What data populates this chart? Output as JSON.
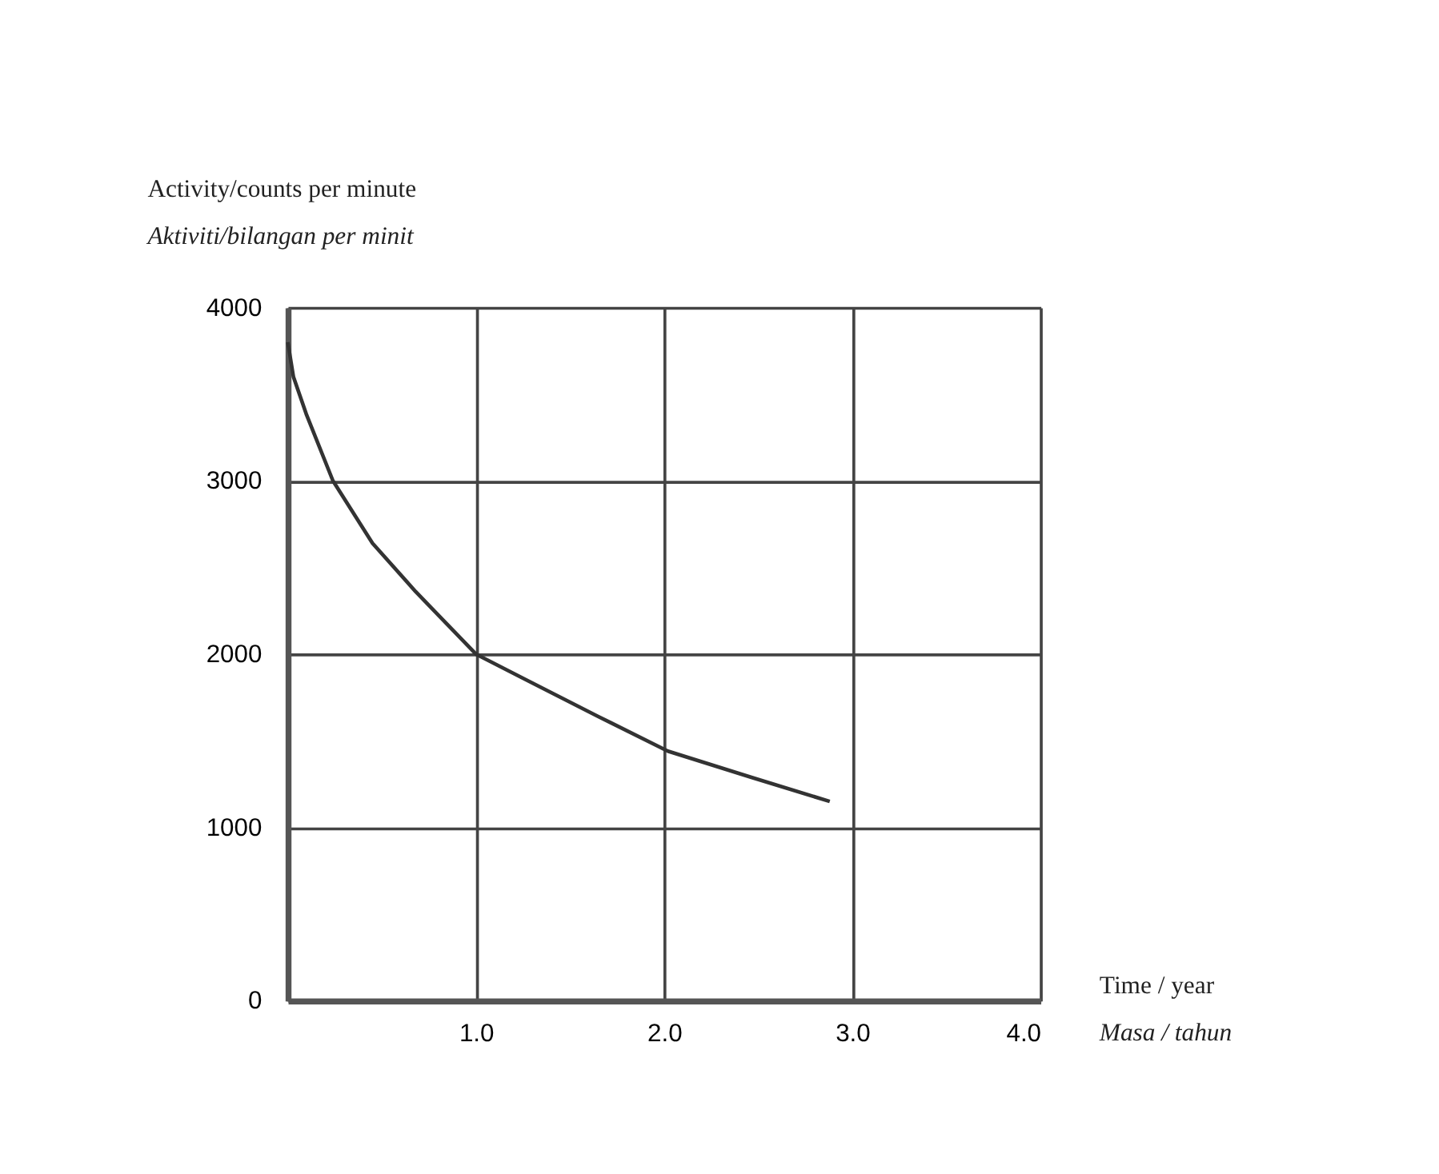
{
  "chart_data": {
    "type": "line",
    "xlabel": "Time / year\nMasa / tahun",
    "ylabel": "Activity/counts per minute\nAktiviti/bilangan per minit",
    "x": [
      0,
      0.03,
      0.1,
      0.24,
      0.45,
      0.68,
      1.0,
      1.27,
      1.65,
      2.02,
      2.46,
      2.88
    ],
    "series": [
      {
        "color": "#333333",
        "values": [
          3800,
          3600,
          3380,
          3000,
          2640,
          2360,
          2000,
          1850,
          1640,
          1440,
          1290,
          1150
        ]
      }
    ],
    "xlim": [
      0,
      4
    ],
    "ylim": [
      0,
      4000
    ],
    "xticks": [
      {
        "value": 0,
        "label": null
      },
      {
        "value": 1,
        "label": "1.0"
      },
      {
        "value": 2,
        "label": "2.0"
      },
      {
        "value": 3,
        "label": "3.0"
      },
      {
        "value": 4,
        "label": "4.0"
      }
    ],
    "yticks": [
      0,
      1000,
      2000,
      3000,
      4000
    ],
    "grid": true,
    "marker": "none",
    "line_style": "solid"
  }
}
